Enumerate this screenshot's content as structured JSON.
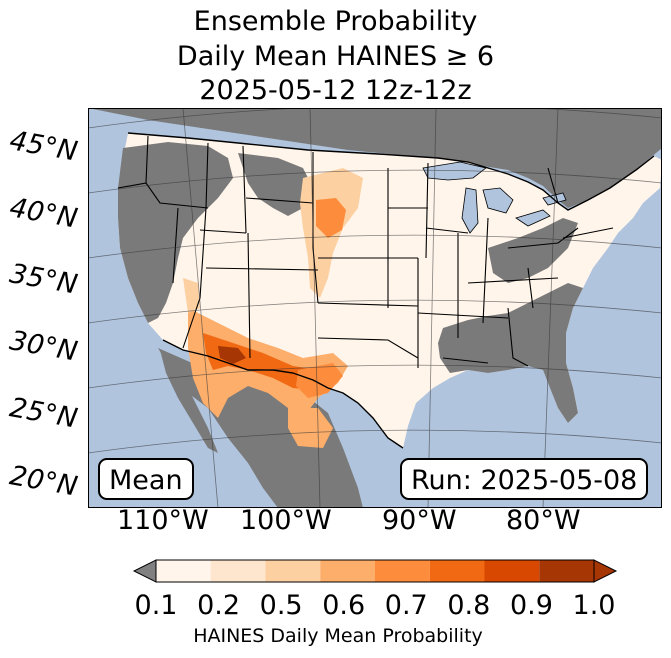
{
  "title": {
    "line1": "Ensemble Probability",
    "line2": "Daily Mean HAINES ≥ 6",
    "line3": "2025-05-12 12z-12z"
  },
  "lat_labels": [
    "45°N",
    "40°N",
    "35°N",
    "30°N",
    "25°N",
    "20°N"
  ],
  "lon_labels": [
    "110°W",
    "100°W",
    "90°W",
    "80°W"
  ],
  "annotations": {
    "left": "Mean",
    "right": "Run: 2025-05-08"
  },
  "colorbar": {
    "label": "HAINES Daily Mean Probability",
    "ticks": [
      "0.1",
      "0.2",
      "0.5",
      "0.6",
      "0.7",
      "0.8",
      "0.9",
      "1.0"
    ],
    "under_color": "#808080",
    "colors": [
      "#fff5eb",
      "#fee6ce",
      "#fdd0a2",
      "#fdae6b",
      "#fd8d3c",
      "#f16913",
      "#d94801",
      "#a63603"
    ]
  },
  "colors": {
    "ocean": "#b0c4de",
    "no_data_gray": "#787878",
    "land_low": "#fff5eb"
  }
}
